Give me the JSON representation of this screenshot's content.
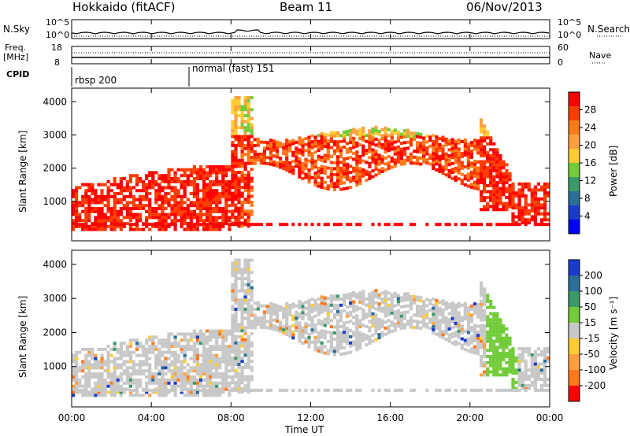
{
  "header": {
    "station": "Hokkaido (fitACF)",
    "beam": "Beam 11",
    "date": "06/Nov/2013"
  },
  "noise_panel": {
    "left_label": "N.Sky",
    "left_ticks": [
      "10^5",
      "10^0"
    ],
    "right_label": "N.Search",
    "right_ticks": [
      "10^5",
      "10^0"
    ]
  },
  "freq_panel": {
    "left_label_top": "Freq.",
    "left_label_bottom": "[MHz]",
    "left_ticks": [
      "18",
      "8"
    ],
    "right_label": "Nave",
    "right_ticks": [
      "60",
      "0"
    ]
  },
  "cpid_panel": {
    "label": "CPID",
    "segments": [
      "rbsp 200",
      "normal (fast) 151"
    ]
  },
  "chart_data": [
    {
      "type": "heatmap",
      "name": "power",
      "ylabel": "Slant Range [km]",
      "xlabel": "",
      "y_ticks": [
        "1000",
        "2000",
        "3000",
        "4000"
      ],
      "colorbar_label": "Power [dB]",
      "colorbar_ticks": [
        "28",
        "24",
        "20",
        "16",
        "12",
        "8",
        "4"
      ],
      "colorbar_colors": [
        "#ff0000",
        "#ff3c00",
        "#ff7a1a",
        "#ffa040",
        "#ffcc33",
        "#72cc3a",
        "#3a9a6a",
        "#2a6e9a",
        "#1a3ccc",
        "#0000ff"
      ]
    },
    {
      "type": "heatmap",
      "name": "velocity",
      "ylabel": "Slant Range [km]",
      "xlabel": "Time UT",
      "x_ticks": [
        "00:00",
        "04:00",
        "08:00",
        "12:00",
        "16:00",
        "20:00",
        "00:00"
      ],
      "y_ticks": [
        "1000",
        "2000",
        "3000",
        "4000"
      ],
      "colorbar_label": "Velocity [m s⁻¹]",
      "colorbar_ticks": [
        "200",
        "100",
        "50",
        "15",
        "-15",
        "-50",
        "-100",
        "-200"
      ],
      "colorbar_colors": [
        "#1a3ccc",
        "#2a6e9a",
        "#3a9a6a",
        "#72cc3a",
        "#c8c8c8",
        "#ffcc33",
        "#ffa040",
        "#ff7a1a",
        "#ff0000"
      ]
    }
  ]
}
